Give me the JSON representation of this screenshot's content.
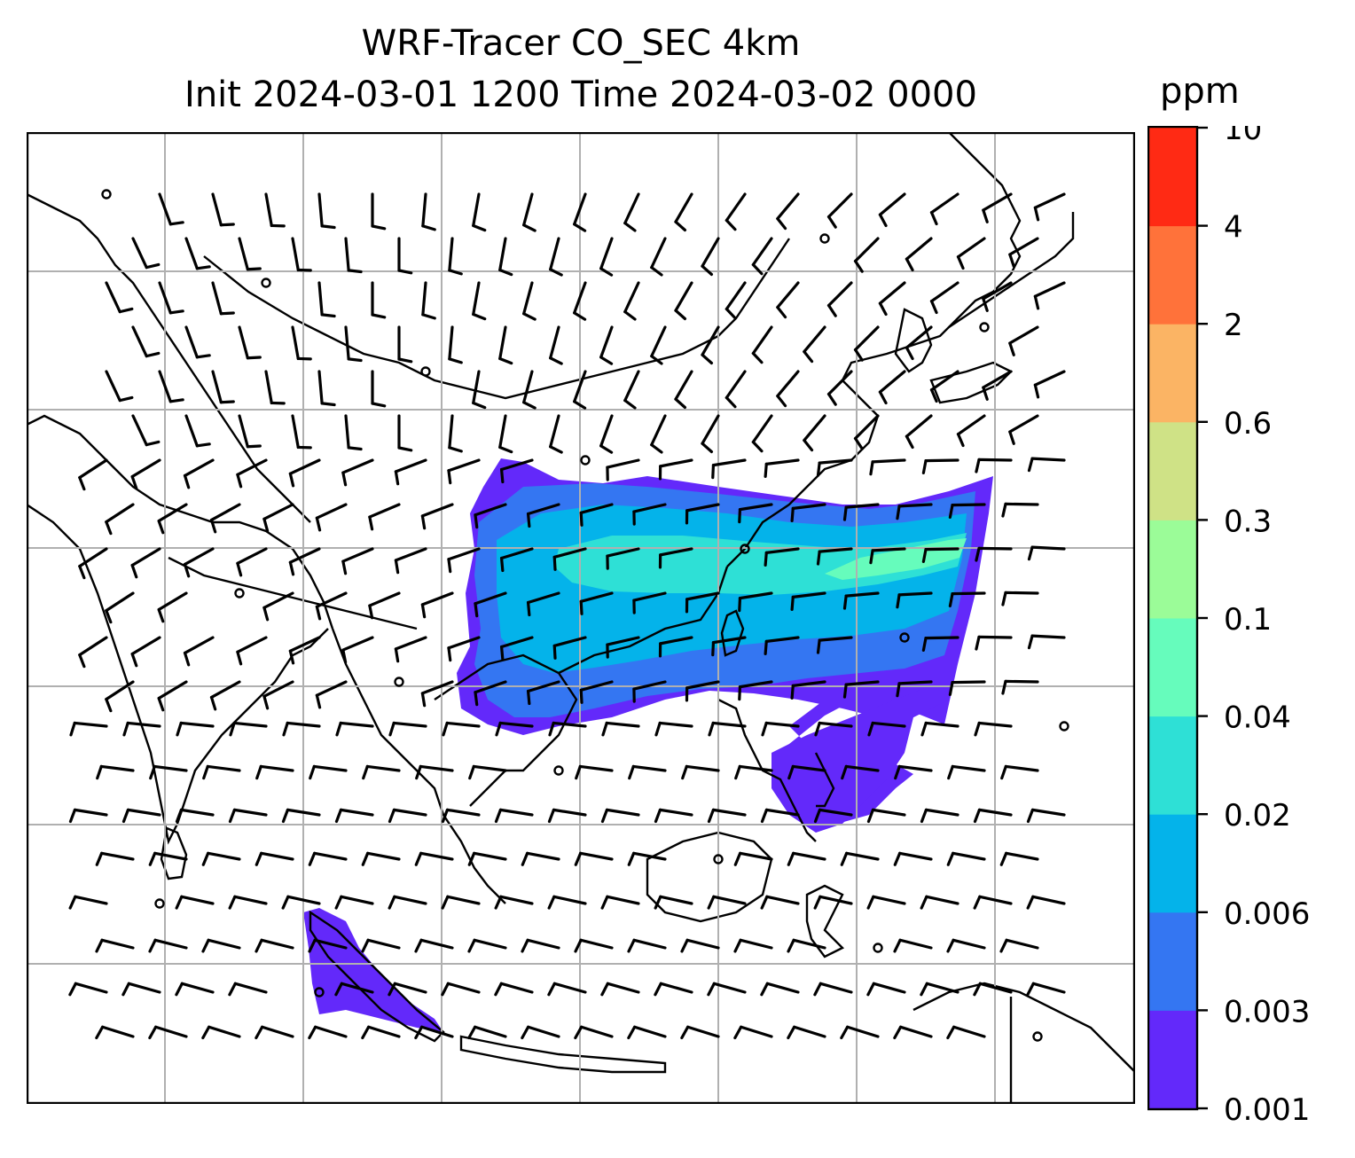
{
  "title": {
    "line1": "WRF-Tracer CO_SEC 4km",
    "line2": "Init 2024-03-01 1200 Time 2024-03-02 0000"
  },
  "colorbar": {
    "unit": "ppm",
    "levels": [
      "0.001",
      "0.003",
      "0.006",
      "0.02",
      "0.04",
      "0.1",
      "0.3",
      "0.6",
      "2",
      "4",
      "10"
    ],
    "colors": [
      "#6329fa",
      "#3476f2",
      "#04b3ea",
      "#2ee0d6",
      "#66fcbc",
      "#9bfc98",
      "#cfe286",
      "#fbb464",
      "#ff723a",
      "#ff2a14"
    ]
  },
  "map": {
    "field": "CO_SEC",
    "gridlines": true,
    "coastline_color": "#000000",
    "wind_barb_color": "#000000"
  }
}
